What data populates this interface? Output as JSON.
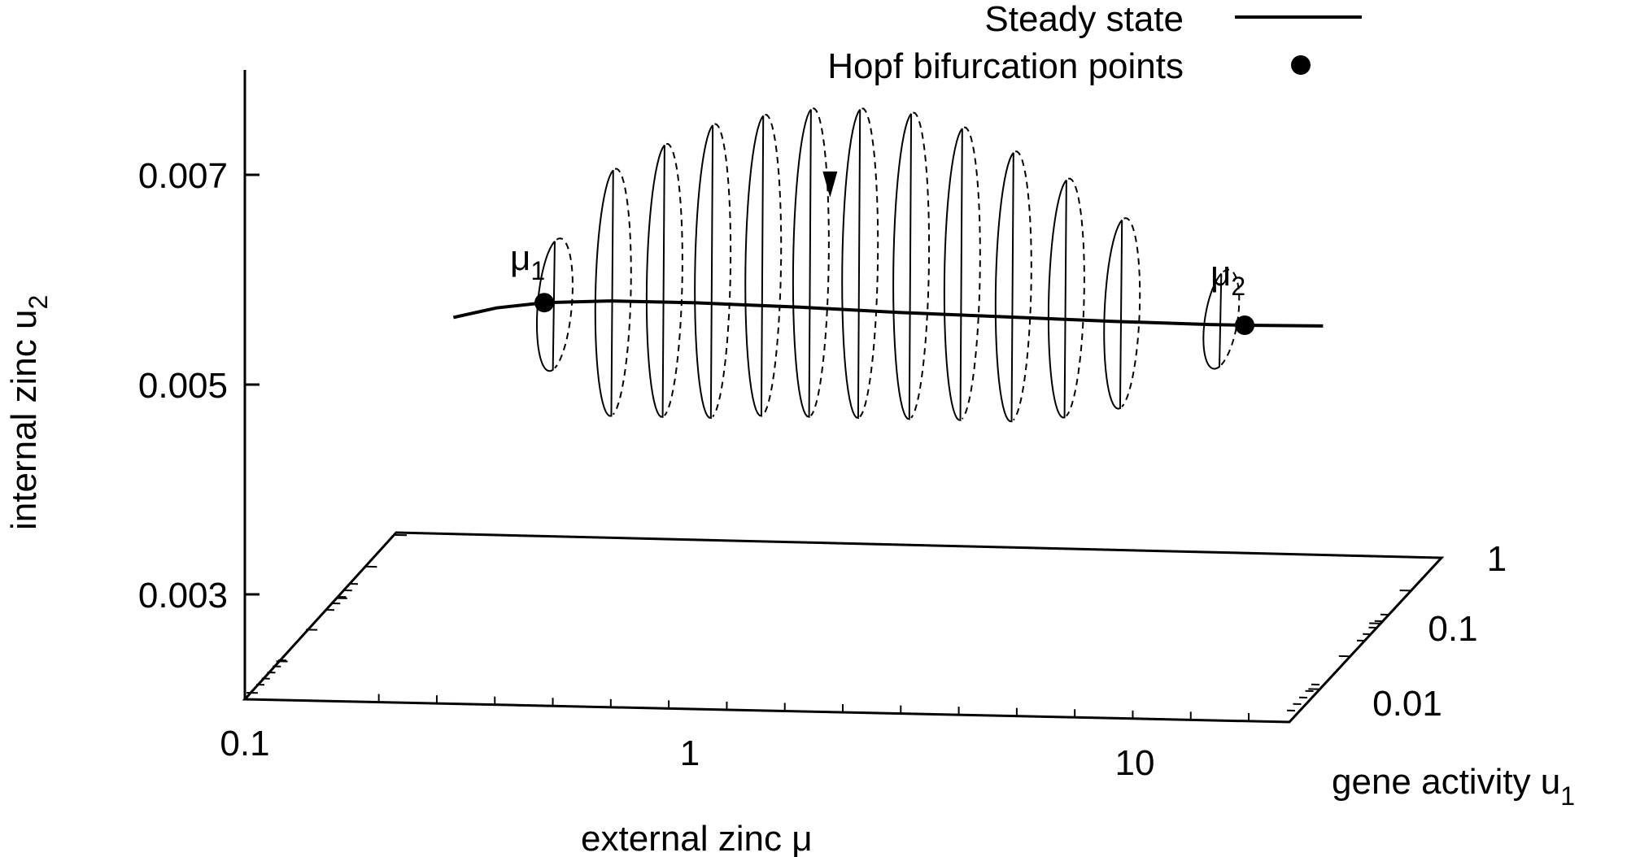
{
  "chart_data": {
    "type": "3d-line",
    "title": "",
    "xlabel": "external zinc μ",
    "ylabel": "gene activity u",
    "ylabel_sub": "1",
    "zlabel": "internal zinc u",
    "zlabel_sub": "2",
    "x_scale": "log",
    "y_scale": "log",
    "x_ticks": [
      "0.1",
      "1",
      "10"
    ],
    "y_ticks": [
      "1",
      "0.1",
      "0.01"
    ],
    "z_ticks": [
      "0.007",
      "0.005",
      "0.003"
    ],
    "xlim": [
      0.1,
      20
    ],
    "ylim": [
      0.004,
      1
    ],
    "zlim": [
      0.002,
      0.008
    ],
    "legend": [
      {
        "label": "Steady state",
        "marker": "line"
      },
      {
        "label": "Hopf bifurcation points",
        "marker": "dot"
      }
    ],
    "annotations": [
      {
        "label": "μ",
        "sub": "1",
        "x": 0.32
      },
      {
        "label": "μ",
        "sub": "2",
        "x": 12
      }
    ],
    "series": [
      {
        "name": "Steady state",
        "kind": "line",
        "points": [
          {
            "x": 0.2,
            "z": 0.0049
          },
          {
            "x": 0.25,
            "z": 0.005
          },
          {
            "x": 0.32,
            "z": 0.00506
          },
          {
            "x": 0.45,
            "z": 0.00509
          },
          {
            "x": 0.7,
            "z": 0.00509
          },
          {
            "x": 1.2,
            "z": 0.00507
          },
          {
            "x": 2.0,
            "z": 0.00504
          },
          {
            "x": 3.5,
            "z": 0.00502
          },
          {
            "x": 6.0,
            "z": 0.005
          },
          {
            "x": 10.0,
            "z": 0.00499
          },
          {
            "x": 12.0,
            "z": 0.00499
          },
          {
            "x": 18.0,
            "z": 0.005
          }
        ]
      },
      {
        "name": "Hopf bifurcation points",
        "kind": "points",
        "points": [
          {
            "x": 0.32,
            "z": 0.00506
          },
          {
            "x": 12.0,
            "z": 0.00499
          }
        ]
      },
      {
        "name": "limit cycles",
        "kind": "cycles",
        "cycles": [
          {
            "x": 0.34,
            "zmin": 0.00445,
            "zmax": 0.00566
          },
          {
            "x": 0.46,
            "zmin": 0.00402,
            "zmax": 0.00635
          },
          {
            "x": 0.6,
            "zmin": 0.00402,
            "zmax": 0.0066
          },
          {
            "x": 0.77,
            "zmin": 0.00402,
            "zmax": 0.0068
          },
          {
            "x": 1.0,
            "zmin": 0.00405,
            "zmax": 0.0069
          },
          {
            "x": 1.28,
            "zmin": 0.00405,
            "zmax": 0.00697
          },
          {
            "x": 1.65,
            "zmin": 0.00405,
            "zmax": 0.00698
          },
          {
            "x": 2.15,
            "zmin": 0.00405,
            "zmax": 0.00695
          },
          {
            "x": 2.8,
            "zmin": 0.00405,
            "zmax": 0.00682
          },
          {
            "x": 3.65,
            "zmin": 0.00405,
            "zmax": 0.0066
          },
          {
            "x": 4.8,
            "zmin": 0.0041,
            "zmax": 0.00635
          },
          {
            "x": 6.4,
            "zmin": 0.0042,
            "zmax": 0.00598
          },
          {
            "x": 10.7,
            "zmin": 0.00462,
            "zmax": 0.00549
          }
        ]
      }
    ],
    "flow_arrow": {
      "x": 1.55,
      "direction": "down"
    }
  }
}
